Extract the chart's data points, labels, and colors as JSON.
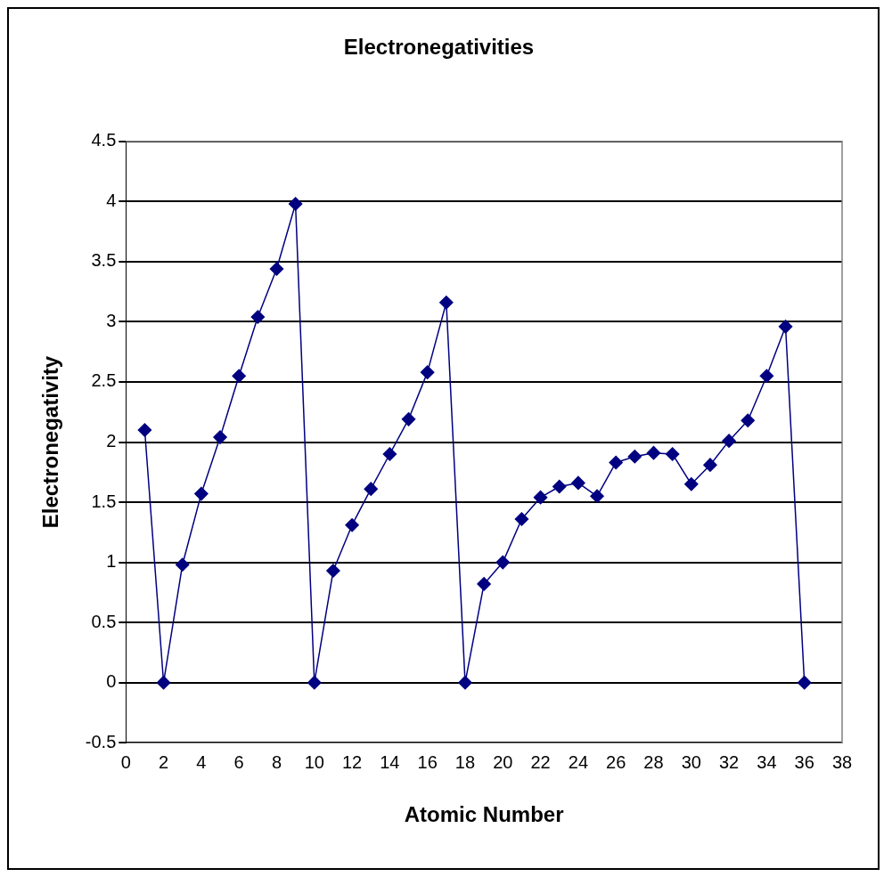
{
  "chart_data": {
    "type": "line",
    "title": "Electronegativities",
    "xlabel": "Atomic Number",
    "ylabel": "Electronegativity",
    "x": [
      1,
      2,
      3,
      4,
      5,
      6,
      7,
      8,
      9,
      10,
      11,
      12,
      13,
      14,
      15,
      16,
      17,
      18,
      19,
      20,
      21,
      22,
      23,
      24,
      25,
      26,
      27,
      28,
      29,
      30,
      31,
      32,
      33,
      34,
      35,
      36
    ],
    "series": [
      {
        "color": "#000080",
        "values": [
          2.1,
          0,
          0.98,
          1.57,
          2.04,
          2.55,
          3.04,
          3.44,
          3.98,
          0,
          0.93,
          1.31,
          1.61,
          1.9,
          2.19,
          2.58,
          3.16,
          0,
          0.82,
          1.0,
          1.36,
          1.54,
          1.63,
          1.66,
          1.55,
          1.83,
          1.88,
          1.91,
          1.9,
          1.65,
          1.81,
          2.01,
          2.18,
          2.55,
          2.96,
          0
        ]
      }
    ],
    "xlim": [
      0,
      38
    ],
    "xticks": [
      0,
      2,
      4,
      6,
      8,
      10,
      12,
      14,
      16,
      18,
      20,
      22,
      24,
      26,
      28,
      30,
      32,
      34,
      36,
      38
    ],
    "ylim": [
      -0.5,
      4.5
    ],
    "yticks": [
      -0.5,
      0,
      0.5,
      1,
      1.5,
      2,
      2.5,
      3,
      3.5,
      4,
      4.5
    ],
    "grid": "y",
    "legend": false,
    "marker": "diamond",
    "line_style": "solid"
  }
}
